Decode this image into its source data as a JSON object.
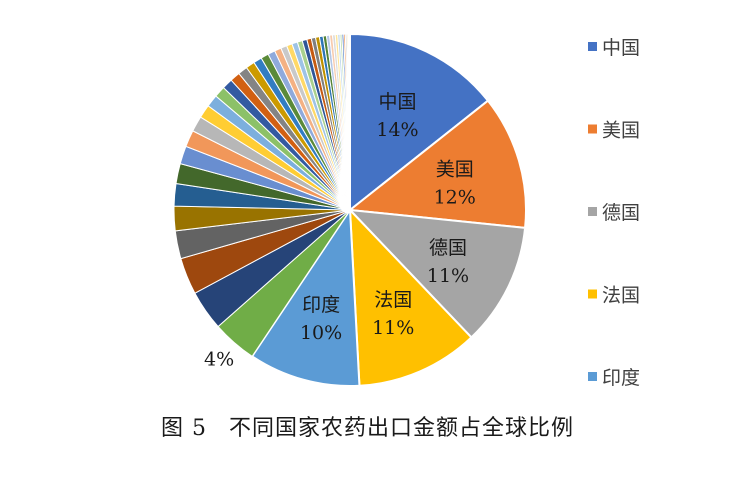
{
  "caption": {
    "figure_number": "图 5",
    "title": "不同国家农药出口金额占全球比例"
  },
  "chart_data": {
    "type": "pie",
    "categories": [
      "中国",
      "美国",
      "德国",
      "法国",
      "印度"
    ],
    "values": [
      14,
      12,
      11,
      11,
      10
    ],
    "value_labels": [
      "14%",
      "12%",
      "11%",
      "11%",
      "10%"
    ],
    "colors": [
      "#4472C4",
      "#ED7D31",
      "#A5A5A5",
      "#FFC000",
      "#5B9BD5"
    ],
    "legend": {
      "position": "right",
      "entries": [
        "中国",
        "美国",
        "德国",
        "法国",
        "印度"
      ]
    },
    "other_slices": {
      "values": [
        4,
        3.6,
        3.3,
        2.5,
        2.2,
        2.0,
        1.8,
        1.6,
        1.5,
        1.4,
        1.2,
        1.1,
        1.0,
        0.95,
        0.9,
        0.85,
        0.8,
        0.75,
        0.7,
        0.65,
        0.6,
        0.55,
        0.5,
        0.5,
        0.45,
        0.42,
        0.4,
        0.38,
        0.35,
        0.33,
        0.3,
        0.28,
        0.26,
        0.24,
        0.22,
        0.2,
        0.18,
        0.16,
        0.14,
        0.12,
        0.1,
        0.08,
        0.06,
        0.05
      ],
      "colors": [
        "#70AD47",
        "#264478",
        "#9E480E",
        "#636363",
        "#997300",
        "#255E91",
        "#43682B",
        "#698ED0",
        "#F1975A",
        "#B7B7B7",
        "#FFCD33",
        "#7CAFDD",
        "#8CC168",
        "#335AA1",
        "#D26012",
        "#848484",
        "#CC9A00",
        "#327DC2",
        "#5A8A39",
        "#8FAADC",
        "#F4B183",
        "#C9C9C9",
        "#FFD966",
        "#9DC3E6",
        "#A9D18E",
        "#2F5597",
        "#C55A11",
        "#7F7F7F",
        "#BF9000",
        "#2E75B6",
        "#548235",
        "#B4C7E7",
        "#F8CBAD",
        "#DBDBDB",
        "#FFE699",
        "#BDD7EE",
        "#C5E0B4",
        "#4472C4",
        "#ED7D31",
        "#A5A5A5",
        "#FFC000",
        "#5B9BD5",
        "#70AD47",
        "#264478"
      ],
      "labels": [
        "4%"
      ]
    }
  }
}
